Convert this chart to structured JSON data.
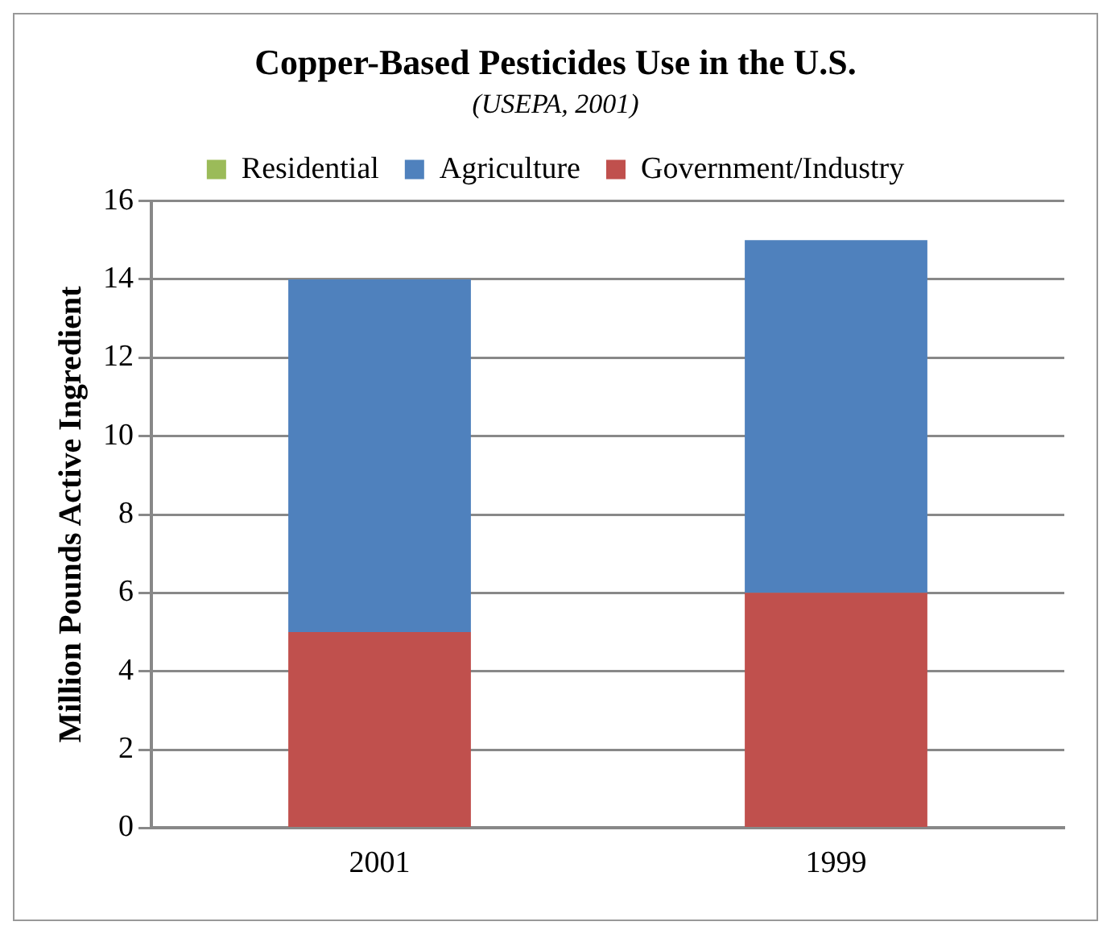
{
  "chart_data": {
    "type": "bar",
    "title": "Copper-Based Pesticides Use in the U.S.",
    "subtitle": "(USEPA, 2001)",
    "ylabel": "Million Pounds Active Ingredient",
    "categories": [
      "2001",
      "1999"
    ],
    "stacked": true,
    "series": [
      {
        "name": "Government/Industry",
        "color": "#c0504d",
        "values": [
          5,
          6
        ]
      },
      {
        "name": "Agriculture",
        "color": "#4f81bd",
        "values": [
          9,
          9
        ]
      },
      {
        "name": "Residential",
        "color": "#9bbb59",
        "values": [
          0,
          0
        ]
      }
    ],
    "ylim": [
      0,
      16
    ],
    "yticks": [
      0,
      2,
      4,
      6,
      8,
      10,
      12,
      14,
      16
    ],
    "grid": "y",
    "legend": "top"
  }
}
